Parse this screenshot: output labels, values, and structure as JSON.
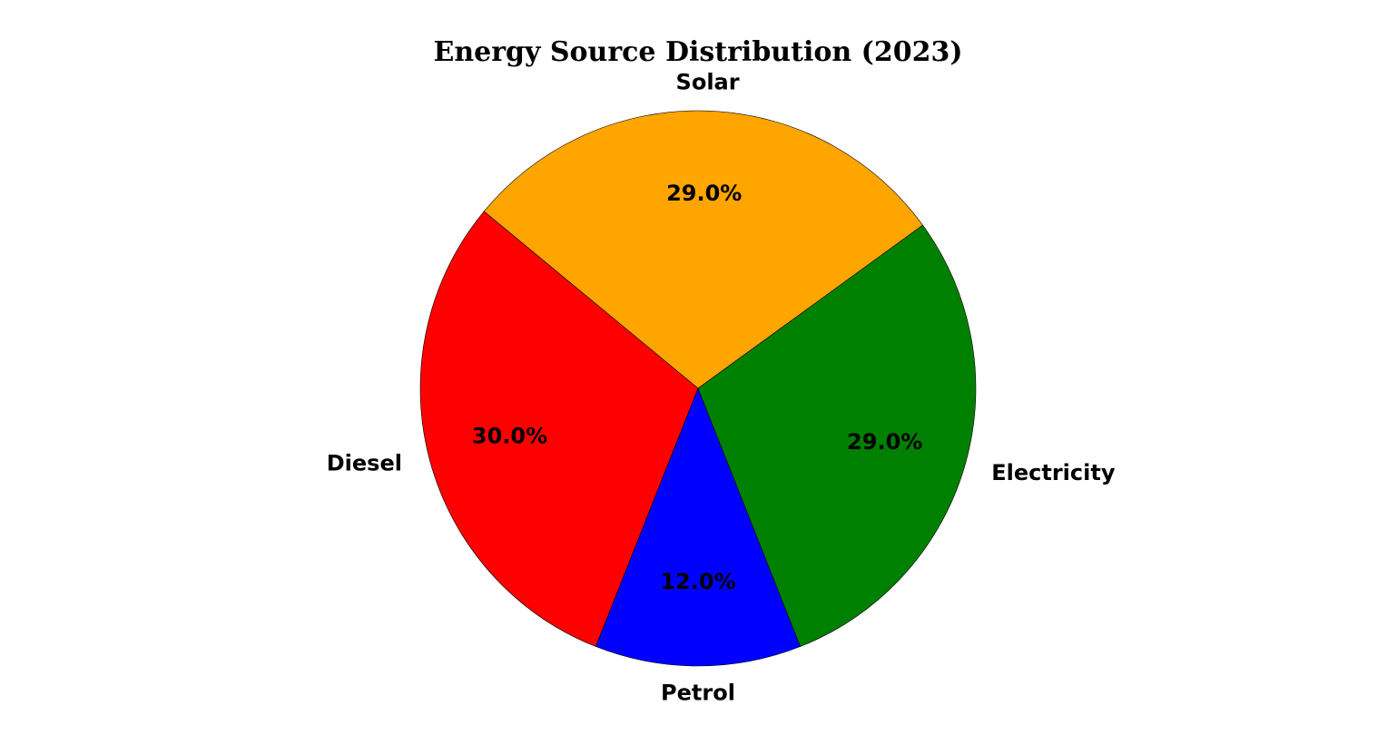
{
  "chart_data": {
    "type": "pie",
    "title": "Energy Source Distribution (2023)",
    "labels": [
      "Solar",
      "Diesel",
      "Petrol",
      "Electricity"
    ],
    "values": [
      29.0,
      30.0,
      12.0,
      29.0
    ],
    "percent_labels": [
      "29.0%",
      "30.0%",
      "12.0%",
      "29.0%"
    ],
    "colors": [
      "#FFA500",
      "#FF0000",
      "#0000FF",
      "#008000"
    ],
    "start_angle_deg": 36,
    "direction": "counterclockwise",
    "legend": "none"
  }
}
